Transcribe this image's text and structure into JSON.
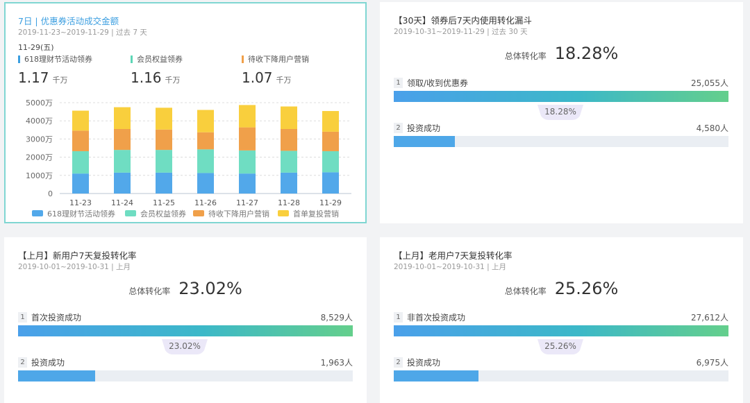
{
  "colors": {
    "blue": "#52a8ea",
    "green": "#6fddc2",
    "orange": "#f0a04a",
    "yellow": "#f9cf3d",
    "accent": "#3b9ee0",
    "selected_border": "#7fd6d2"
  },
  "card1": {
    "title": "7日 | 优惠券活动成交金额",
    "subtitle": "2019-11-23~2019-11-29 | 过去 7 天",
    "date": "11-29(五)",
    "metrics": [
      {
        "label": "618理财节活动领券",
        "value": "1.17",
        "unit": "千万",
        "color": "#3b9ee0"
      },
      {
        "label": "会员权益领券",
        "value": "1.16",
        "unit": "千万",
        "color": "#5dd6b6"
      },
      {
        "label": "待收下降用户营销",
        "value": "1.07",
        "unit": "千万",
        "color": "#f0a04a"
      }
    ]
  },
  "chart_data": {
    "type": "bar",
    "stacked": true,
    "categories": [
      "11-23",
      "11-24",
      "11-25",
      "11-26",
      "11-27",
      "11-28",
      "11-29"
    ],
    "series": [
      {
        "name": "618理财节活动领券",
        "color": "#52a8ea",
        "values": [
          1100,
          1150,
          1150,
          1130,
          1100,
          1150,
          1170
        ]
      },
      {
        "name": "会员权益领券",
        "color": "#6fddc2",
        "values": [
          1230,
          1250,
          1250,
          1300,
          1270,
          1200,
          1160
        ]
      },
      {
        "name": "待收下降用户营销",
        "color": "#f0a04a",
        "values": [
          1130,
          1150,
          1120,
          940,
          1270,
          1200,
          1070
        ]
      },
      {
        "name": "首单复投营销",
        "color": "#f9cf3d",
        "values": [
          1100,
          1200,
          1200,
          1230,
          1230,
          1240,
          1140
        ]
      }
    ],
    "ylim": [
      0,
      5000
    ],
    "yticks": [
      "0",
      "1000万",
      "2000万",
      "3000万",
      "4000万",
      "5000万"
    ],
    "grid": true,
    "legend": "bottom"
  },
  "card2": {
    "title": "【30天】领券后7天内使用转化漏斗",
    "subtitle": "2019-10-31~2019-11-29 | 过去 30 天",
    "overall_label": "总体转化率",
    "overall_value": "18.28%",
    "step1_num": "1",
    "step1_label": "领取/收到优惠券",
    "step1_value": "25,055人",
    "conversion": "18.28%",
    "step2_num": "2",
    "step2_label": "投资成功",
    "step2_value": "4,580人",
    "step2_ratio": 0.1828
  },
  "card3": {
    "title": "【上月】新用户7天复投转化率",
    "subtitle": "2019-10-01~2019-10-31 | 上月",
    "overall_label": "总体转化率",
    "overall_value": "23.02%",
    "step1_num": "1",
    "step1_label": "首次投资成功",
    "step1_value": "8,529人",
    "conversion": "23.02%",
    "step2_num": "2",
    "step2_label": "投资成功",
    "step2_value": "1,963人",
    "step2_ratio": 0.2302
  },
  "card4": {
    "title": "【上月】老用户7天复投转化率",
    "subtitle": "2019-10-01~2019-10-31 | 上月",
    "overall_label": "总体转化率",
    "overall_value": "25.26%",
    "step1_num": "1",
    "step1_label": "非首次投资成功",
    "step1_value": "27,612人",
    "conversion": "25.26%",
    "step2_num": "2",
    "step2_label": "投资成功",
    "step2_value": "6,975人",
    "step2_ratio": 0.2526
  }
}
